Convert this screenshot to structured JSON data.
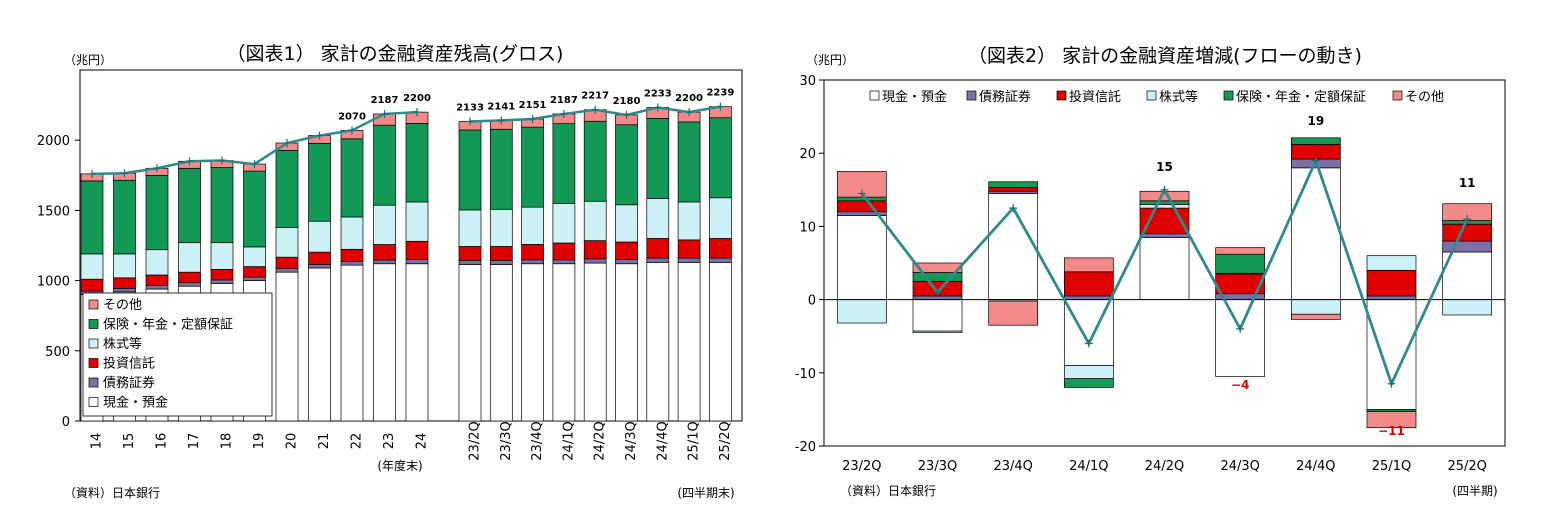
{
  "chart_data": [
    {
      "type": "bar",
      "stacked": true,
      "title": "（図表1） 家計の金融資産残高(グロス)",
      "ylabel": "（兆円）",
      "ylim": [
        0,
        2500
      ],
      "yticks": [
        0,
        500,
        1000,
        1500,
        2000
      ],
      "annual_note": "(年度末)",
      "quarter_note": "(四半期末)",
      "source": "（資料）日本銀行",
      "categories": [
        "14",
        "15",
        "16",
        "17",
        "18",
        "19",
        "20",
        "21",
        "22",
        "23",
        "24",
        "23/2Q",
        "23/3Q",
        "23/4Q",
        "24/1Q",
        "24/2Q",
        "24/3Q",
        "24/4Q",
        "25/1Q",
        "25/2Q"
      ],
      "series": [
        {
          "name": "現金・預金",
          "color": "#ffffff",
          "values": [
            900,
            920,
            940,
            960,
            980,
            1000,
            1060,
            1090,
            1110,
            1120,
            1120,
            1115,
            1115,
            1120,
            1120,
            1125,
            1120,
            1130,
            1130,
            1130
          ]
        },
        {
          "name": "債務証券",
          "color": "#7b6fa8",
          "values": [
            26,
            25,
            25,
            25,
            25,
            25,
            25,
            25,
            25,
            27,
            30,
            28,
            28,
            28,
            28,
            30,
            30,
            30,
            30,
            30
          ]
        },
        {
          "name": "投資信託",
          "color": "#e00000",
          "values": [
            84,
            75,
            75,
            75,
            75,
            75,
            82,
            88,
            88,
            110,
            130,
            100,
            100,
            110,
            120,
            130,
            125,
            140,
            130,
            140
          ]
        },
        {
          "name": "株式等",
          "color": "#ccf2f8",
          "values": [
            180,
            170,
            180,
            210,
            190,
            140,
            210,
            220,
            230,
            280,
            280,
            260,
            265,
            265,
            280,
            280,
            265,
            285,
            270,
            290
          ]
        },
        {
          "name": "保険・年金・定額保証",
          "color": "#119955",
          "values": [
            520,
            525,
            530,
            530,
            535,
            540,
            550,
            555,
            557,
            570,
            560,
            570,
            570,
            570,
            570,
            570,
            570,
            570,
            570,
            570
          ]
        },
        {
          "name": "その他",
          "color": "#f28a8a",
          "values": [
            50,
            50,
            50,
            50,
            50,
            50,
            53,
            55,
            60,
            80,
            80,
            60,
            63,
            58,
            69,
            82,
            70,
            78,
            70,
            79
          ]
        }
      ],
      "total_line": [
        1760,
        1765,
        1800,
        1850,
        1855,
        1830,
        1980,
        2033,
        2070,
        2187,
        2200,
        2133,
        2141,
        2151,
        2187,
        2217,
        2180,
        2233,
        2200,
        2239
      ],
      "total_labels": [
        "",
        "",
        "",
        "",
        "",
        "",
        "",
        "",
        "2070",
        "2187",
        "2200",
        "2133",
        "2141",
        "2151",
        "2187",
        "2217",
        "2180",
        "2233",
        "2200",
        "2239"
      ],
      "legend_order": [
        "その他",
        "保険・年金・定額保証",
        "株式等",
        "投資信託",
        "債務証券",
        "現金・預金"
      ],
      "legend_position": "bottom-left"
    },
    {
      "type": "bar",
      "stacked": true,
      "title": "（図表2） 家計の金融資産増減(フローの動き)",
      "ylabel": "（兆円）",
      "ylim": [
        -20,
        30
      ],
      "yticks": [
        -20,
        -10,
        0,
        10,
        20,
        30
      ],
      "x_note": "(四半期)",
      "source": "（資料）日本銀行",
      "categories": [
        "23/2Q",
        "23/3Q",
        "23/4Q",
        "24/1Q",
        "24/2Q",
        "24/3Q",
        "24/4Q",
        "25/1Q",
        "25/2Q"
      ],
      "series": [
        {
          "name": "現金・預金",
          "color": "#ffffff",
          "values": [
            11.5,
            -4.3,
            14.5,
            -9,
            8.5,
            -10.5,
            18,
            -15,
            6.5
          ]
        },
        {
          "name": "債務証券",
          "color": "#7b6fa8",
          "values": [
            0.5,
            0.5,
            0.3,
            0.5,
            0.5,
            0.8,
            1.2,
            0.5,
            1.5
          ]
        },
        {
          "name": "投資信託",
          "color": "#e00000",
          "values": [
            1.5,
            2,
            0.5,
            3.3,
            3.5,
            2.7,
            2,
            3.5,
            2.3
          ]
        },
        {
          "name": "株式等",
          "color": "#ccf2f8",
          "values": [
            -3.2,
            -0.2,
            -0.2,
            -1.8,
            0.5,
            0.1,
            -2,
            2,
            -2.1
          ]
        },
        {
          "name": "保険・年金・定額保証",
          "color": "#119955",
          "values": [
            0.5,
            1.2,
            0.8,
            -1.2,
            0.5,
            2.6,
            0.9,
            -0.3,
            0.5
          ]
        },
        {
          "name": "その他",
          "color": "#f28a8a",
          "values": [
            3.5,
            1.3,
            -3.3,
            1.9,
            1.3,
            0.9,
            -0.7,
            -2.2,
            2.3
          ]
        }
      ],
      "total_line": [
        14.5,
        1,
        12.5,
        -6,
        15,
        -4,
        19,
        -11.5,
        11
      ],
      "total_labels": [
        "",
        "",
        "",
        "",
        "15",
        "-4",
        "19",
        "-11",
        "11"
      ],
      "total_label_colors": [
        "#000",
        "#000",
        "#000",
        "#000",
        "#000",
        "#e00000",
        "#000",
        "#e00000",
        "#000"
      ],
      "legend_order": [
        "現金・預金",
        "債務証券",
        "投資信託",
        "株式等",
        "保険・年金・定額保証",
        "その他"
      ],
      "legend_position": "top"
    }
  ]
}
